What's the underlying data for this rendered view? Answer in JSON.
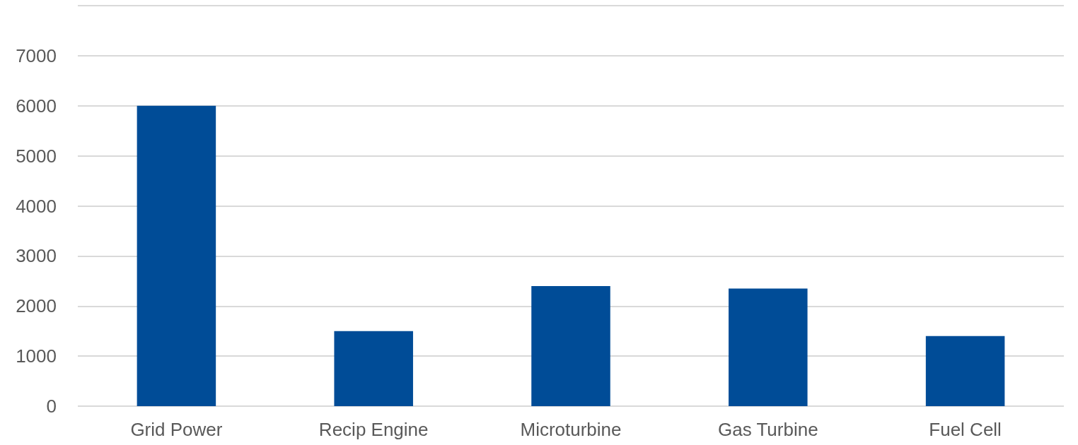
{
  "chart_data": {
    "type": "bar",
    "categories": [
      "Grid Power",
      "Recip Engine",
      "Microturbine",
      "Gas Turbine",
      "Fuel Cell"
    ],
    "values": [
      6000,
      1500,
      2400,
      2350,
      1400
    ],
    "color": "#004c97",
    "ylim": [
      0,
      8000
    ],
    "yticks": [
      0,
      1000,
      2000,
      3000,
      4000,
      5000,
      6000,
      7000,
      {
        "value": 8000,
        "label": null
      }
    ],
    "grid": "y"
  }
}
